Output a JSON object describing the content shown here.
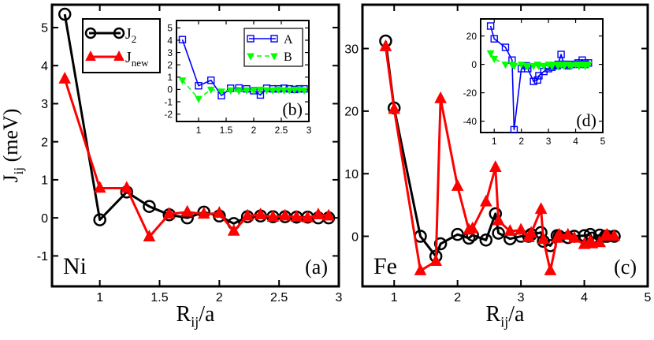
{
  "chart_data": [
    {
      "id": "a",
      "type": "line",
      "panel_label": "(a)",
      "element_label": "Ni",
      "xlabel": "R",
      "xlabel_sub": "ij",
      "xlabel_tail": "/a",
      "ylabel": "J",
      "ylabel_sub": "ij",
      "ylabel_tail": " (meV)",
      "xlim": [
        0.6,
        3.0
      ],
      "ylim": [
        -1.8,
        5.6
      ],
      "xticks": [
        1,
        1.5,
        2,
        2.5,
        3
      ],
      "xtick_labels": [
        "1",
        "1.5",
        "2",
        "2.5",
        "3"
      ],
      "yticks": [
        -1,
        0,
        1,
        2,
        3,
        4,
        5
      ],
      "ytick_labels": [
        "-1",
        "0",
        "1",
        "2",
        "3",
        "4",
        "5"
      ],
      "legend": {
        "position": "top-left",
        "entries": [
          {
            "base": "J",
            "sub": "2"
          },
          {
            "base": "J",
            "sub": "new"
          }
        ]
      },
      "series": [
        {
          "name": "J2",
          "color": "#000000",
          "marker": "circle",
          "x": [
            0.707,
            1.0,
            1.225,
            1.414,
            1.581,
            1.732,
            1.871,
            2.0,
            2.121,
            2.236,
            2.345,
            2.449,
            2.55,
            2.646,
            2.739,
            2.828,
            2.915
          ],
          "y": [
            5.35,
            -0.05,
            0.68,
            0.3,
            0.08,
            0.0,
            0.15,
            0.05,
            -0.15,
            0.03,
            0.05,
            0.03,
            0.03,
            0.02,
            0.02,
            0.0,
            0.0
          ]
        },
        {
          "name": "Jnew",
          "color": "#ff0000",
          "marker": "triangle",
          "x": [
            0.707,
            1.0,
            1.225,
            1.414,
            1.581,
            1.732,
            1.871,
            2.0,
            2.121,
            2.236,
            2.345,
            2.449,
            2.55,
            2.646,
            2.739,
            2.828,
            2.915
          ],
          "y": [
            3.65,
            0.78,
            0.78,
            -0.5,
            0.1,
            0.15,
            0.1,
            0.12,
            -0.35,
            0.05,
            0.08,
            0.02,
            0.05,
            0.02,
            0.0,
            0.08,
            0.05
          ]
        }
      ]
    },
    {
      "id": "b",
      "type": "line",
      "panel_label": "(b)",
      "xlim": [
        0.6,
        3.0
      ],
      "ylim": [
        -2.6,
        5.6
      ],
      "xticks": [
        1,
        1.5,
        2,
        2.5,
        3
      ],
      "xtick_labels": [
        "1",
        "1.5",
        "2",
        "2.5",
        "3"
      ],
      "yticks": [
        -2,
        -1,
        0,
        1,
        2,
        3,
        4,
        5
      ],
      "ytick_labels": [
        "-2",
        "-1",
        "0",
        "1",
        "2",
        "3",
        "4",
        "5"
      ],
      "legend": {
        "position": "top-right",
        "entries": [
          {
            "base": "A"
          },
          {
            "base": "B"
          }
        ]
      },
      "series": [
        {
          "name": "A",
          "color": "#0000ff",
          "marker": "square",
          "x": [
            0.707,
            1.0,
            1.225,
            1.414,
            1.581,
            1.732,
            1.871,
            2.0,
            2.121,
            2.236,
            2.345,
            2.449,
            2.55,
            2.646,
            2.739,
            2.828,
            2.915
          ],
          "y": [
            4.05,
            0.3,
            0.75,
            -0.5,
            0.1,
            0.12,
            0.05,
            -0.1,
            -0.45,
            0.1,
            0.05,
            0.05,
            0.1,
            0.05,
            0.0,
            0.05,
            0.05
          ]
        },
        {
          "name": "B",
          "color": "#00ff00",
          "marker": "triangle-down",
          "x": [
            0.707,
            1.0,
            1.225,
            1.414,
            1.581,
            1.732,
            1.871,
            2.0,
            2.121,
            2.236,
            2.345,
            2.449,
            2.55,
            2.646,
            2.739,
            2.828,
            2.915
          ],
          "y": [
            0.75,
            -0.75,
            0.0,
            -0.15,
            -0.05,
            -0.1,
            -0.05,
            -0.05,
            0.0,
            -0.05,
            -0.05,
            0.0,
            -0.05,
            -0.05,
            0.0,
            0.0,
            -0.05
          ]
        }
      ]
    },
    {
      "id": "c",
      "type": "line",
      "panel_label": "(c)",
      "element_label": "Fe",
      "xlabel": "R",
      "xlabel_sub": "ij",
      "xlabel_tail": "/a",
      "xlim": [
        0.5,
        5.0
      ],
      "ylim": [
        -8.0,
        37.0
      ],
      "xticks": [
        1,
        2,
        3,
        4,
        5
      ],
      "xtick_labels": [
        "1",
        "2",
        "3",
        "4",
        "5"
      ],
      "yticks": [
        0,
        10,
        20,
        30
      ],
      "ytick_labels": [
        "0",
        "10",
        "20",
        "30"
      ],
      "series": [
        {
          "name": "J2",
          "color": "#000000",
          "marker": "circle",
          "x": [
            0.866,
            1.0,
            1.414,
            1.658,
            1.732,
            2.0,
            2.179,
            2.236,
            2.449,
            2.598,
            2.646,
            2.828,
            3.0,
            3.122,
            3.162,
            3.317,
            3.354,
            3.464,
            3.571,
            3.606,
            3.742,
            3.841,
            4.0,
            4.093,
            4.123,
            4.243,
            4.33,
            4.359,
            4.472
          ],
          "y": [
            31.2,
            20.5,
            0.0,
            -3.2,
            -1.2,
            0.3,
            -0.3,
            0.2,
            -0.6,
            3.6,
            0.5,
            -0.4,
            0.0,
            0.0,
            0.3,
            0.6,
            -0.8,
            -1.5,
            0.1,
            0.0,
            -0.2,
            0.0,
            0.1,
            0.3,
            -0.3,
            0.2,
            0.0,
            0.0,
            0.0
          ]
        },
        {
          "name": "Jnew",
          "color": "#ff0000",
          "marker": "triangle",
          "x": [
            0.866,
            1.0,
            1.414,
            1.658,
            1.732,
            2.0,
            2.179,
            2.236,
            2.449,
            2.598,
            2.646,
            2.828,
            3.0,
            3.122,
            3.162,
            3.317,
            3.354,
            3.464,
            3.571,
            3.606,
            3.742,
            3.841,
            4.0,
            4.093,
            4.123,
            4.243,
            4.33,
            4.359,
            4.472
          ],
          "y": [
            30.3,
            20.3,
            -5.5,
            -4.0,
            22.0,
            8.0,
            1.0,
            1.2,
            5.5,
            11.0,
            2.5,
            0.8,
            1.0,
            -0.2,
            0.5,
            4.3,
            -0.5,
            -5.5,
            -0.3,
            0.2,
            0.2,
            -0.3,
            -1.3,
            -0.8,
            -1.2,
            -1.0,
            0.0,
            0.2,
            0.0
          ]
        }
      ]
    },
    {
      "id": "d",
      "type": "line",
      "panel_label": "(d)",
      "xlim": [
        0.5,
        5.0
      ],
      "ylim": [
        -48.0,
        32.0
      ],
      "xticks": [
        1,
        2,
        3,
        4,
        5
      ],
      "xtick_labels": [
        "1",
        "2",
        "3",
        "4",
        "5"
      ],
      "yticks": [
        -40,
        -20,
        0,
        20
      ],
      "ytick_labels": [
        "-40",
        "-20",
        "0",
        "20"
      ],
      "series": [
        {
          "name": "A",
          "color": "#0000ff",
          "marker": "square",
          "x": [
            0.866,
            1.0,
            1.414,
            1.658,
            1.732,
            2.0,
            2.179,
            2.236,
            2.449,
            2.598,
            2.646,
            2.828,
            3.0,
            3.122,
            3.162,
            3.317,
            3.354,
            3.464,
            3.571,
            3.606,
            3.742,
            3.841,
            4.0,
            4.093,
            4.123,
            4.243,
            4.33,
            4.359,
            4.472
          ],
          "y": [
            27.0,
            18.0,
            12.0,
            3.0,
            -46.0,
            -3.0,
            -1.0,
            -3.0,
            -12.0,
            -11.0,
            -8.0,
            -5.0,
            -3.0,
            -2.0,
            -1.0,
            -1.0,
            0.0,
            7.0,
            0.0,
            0.0,
            -1.0,
            0.0,
            0.0,
            1.0,
            0.0,
            3.0,
            1.0,
            0.0,
            1.0
          ]
        },
        {
          "name": "B",
          "color": "#00ff00",
          "marker": "triangle-down",
          "x": [
            0.866,
            1.0,
            1.414,
            1.658,
            1.732,
            2.0,
            2.179,
            2.236,
            2.449,
            2.598,
            2.646,
            2.828,
            3.0,
            3.122,
            3.162,
            3.317,
            3.354,
            3.464,
            3.571,
            3.606,
            3.742,
            3.841,
            4.0,
            4.093,
            4.123,
            4.243,
            4.33,
            4.359,
            4.472
          ],
          "y": [
            8.0,
            4.0,
            0.0,
            0.0,
            -1.0,
            0.0,
            -1.0,
            -1.0,
            -1.0,
            0.0,
            -1.0,
            -1.0,
            0.0,
            -1.0,
            0.0,
            0.0,
            -1.0,
            0.0,
            -1.0,
            0.0,
            0.0,
            -1.0,
            0.0,
            0.0,
            -1.0,
            0.0,
            0.0,
            -1.0,
            0.0
          ]
        }
      ]
    }
  ]
}
